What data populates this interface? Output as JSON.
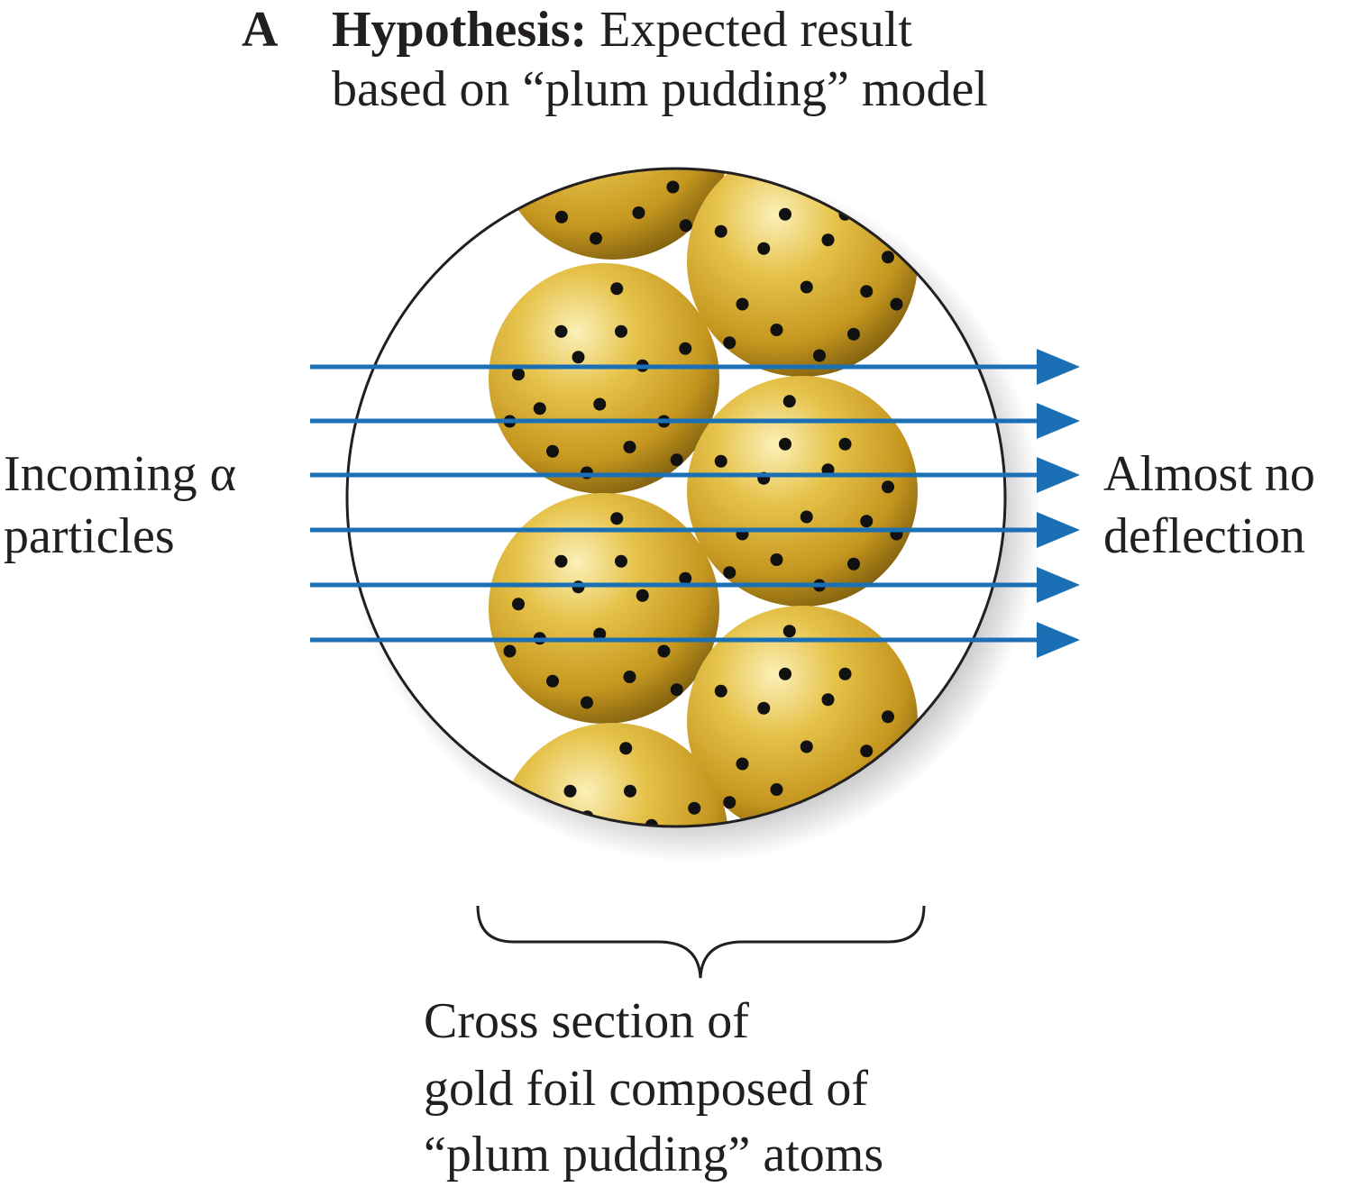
{
  "header": {
    "panel_letter": "A",
    "title_bold": "Hypothesis:",
    "title_line1_rest": " Expected result",
    "title_line2": "based on “plum pudding” model"
  },
  "labels": {
    "incoming_line1": "Incoming α",
    "incoming_line2": "particles",
    "outgoing_line1": "Almost no",
    "outgoing_line2": "deflection",
    "foil_line1": "Cross section of",
    "foil_line2": "gold foil composed of",
    "foil_line3": "“plum pudding” atoms"
  },
  "colors": {
    "arrow": "#1a6fb5",
    "gold_light": "#f7e39a",
    "gold_mid": "#d4aa2c",
    "gold_dark": "#8a6a12",
    "electron": "#111111",
    "outline": "#231f20"
  }
}
